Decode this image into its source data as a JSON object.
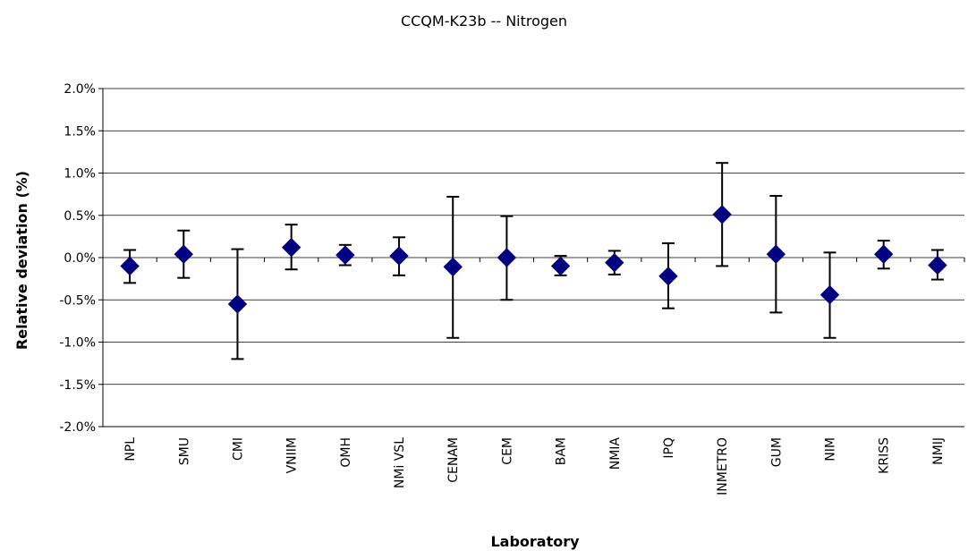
{
  "chart_data": {
    "type": "scatter",
    "title": "CCQM-K23b -- Nitrogen",
    "xlabel": "Laboratory",
    "ylabel": "Relative deviation  (%)",
    "ylim": [
      -2.0,
      2.0
    ],
    "y_ticks": [
      "2.0%",
      "1.5%",
      "1.0%",
      "0.5%",
      "0.0%",
      "-0.5%",
      "-1.0%",
      "-1.5%",
      "-2.0%"
    ],
    "grid": true,
    "marker": "diamond",
    "color": "#000080",
    "categories": [
      "NPL",
      "SMU",
      "CMI",
      "VNIIM",
      "OMH",
      "NMi VSL",
      "CENAM",
      "CEM",
      "BAM",
      "NMIA",
      "IPQ",
      "INMETRO",
      "GUM",
      "NIM",
      "KRISS",
      "NMIJ"
    ],
    "values": [
      -0.1,
      0.04,
      -0.55,
      0.12,
      0.03,
      0.02,
      -0.11,
      0.0,
      -0.1,
      -0.06,
      -0.22,
      0.51,
      0.04,
      -0.44,
      0.04,
      -0.09
    ],
    "error_low": [
      -0.3,
      -0.24,
      -1.2,
      -0.14,
      -0.09,
      -0.21,
      -0.95,
      -0.5,
      -0.21,
      -0.2,
      -0.6,
      -0.1,
      -0.65,
      -0.95,
      -0.13,
      -0.26
    ],
    "error_high": [
      0.09,
      0.32,
      0.1,
      0.39,
      0.15,
      0.24,
      0.72,
      0.49,
      0.02,
      0.08,
      0.17,
      1.12,
      0.73,
      0.06,
      0.2,
      0.09
    ]
  }
}
